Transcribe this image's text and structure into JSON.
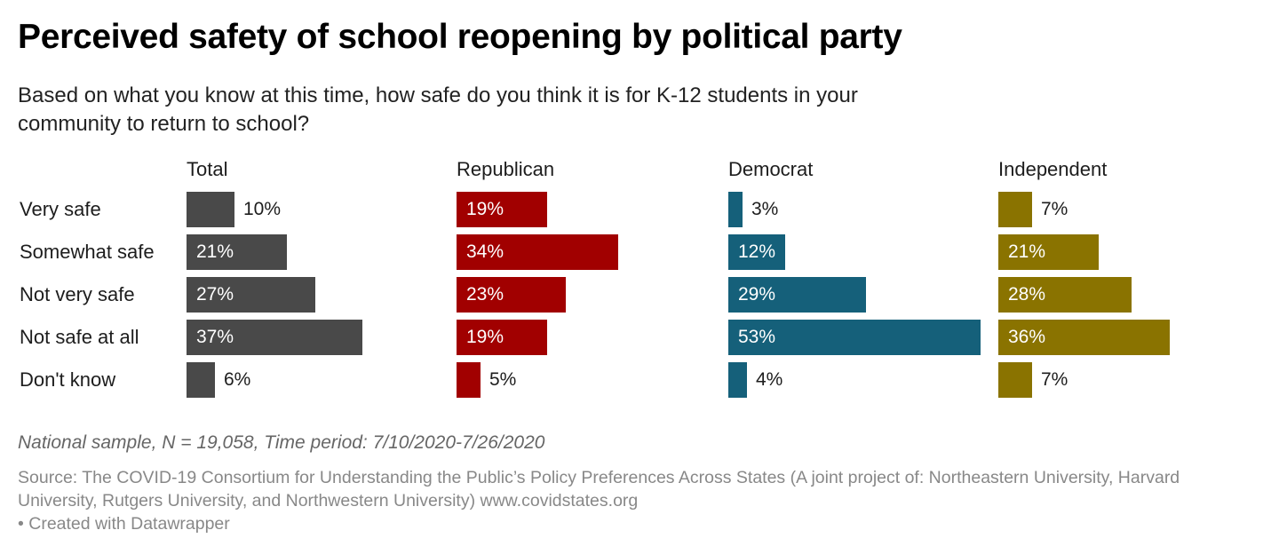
{
  "header": {
    "title": "Perceived safety of school reopening by political party",
    "subtitle": "Based on what you know at this time, how safe do you think it is for K-12 students in your community to return to school?"
  },
  "chart_data": {
    "type": "bar",
    "orientation": "horizontal",
    "layout": "small-multiples",
    "title": "Perceived safety of school reopening by political party",
    "categories": [
      "Very safe",
      "Somewhat safe",
      "Not very safe",
      "Not safe at all",
      "Don't know"
    ],
    "unit": "%",
    "xlim": [
      0,
      53
    ],
    "series": [
      {
        "name": "Total",
        "color": "#494949",
        "values": [
          10,
          21,
          27,
          37,
          6
        ]
      },
      {
        "name": "Republican",
        "color": "#a10000",
        "values": [
          19,
          34,
          23,
          19,
          5
        ]
      },
      {
        "name": "Democrat",
        "color": "#15607a",
        "values": [
          3,
          12,
          29,
          53,
          4
        ]
      },
      {
        "name": "Independent",
        "color": "#8a7300",
        "values": [
          7,
          21,
          28,
          36,
          7
        ]
      }
    ]
  },
  "footer": {
    "notes": "National sample, N = 19,058, Time period: 7/10/2020-7/26/2020",
    "source": "Source: The COVID-19 Consortium for Understanding the Public’s Policy Preferences Across States (A joint project of: Northeastern University, Harvard University, Rutgers University, and Northwestern University) www.covidstates.org",
    "credit": "• Created with Datawrapper"
  }
}
